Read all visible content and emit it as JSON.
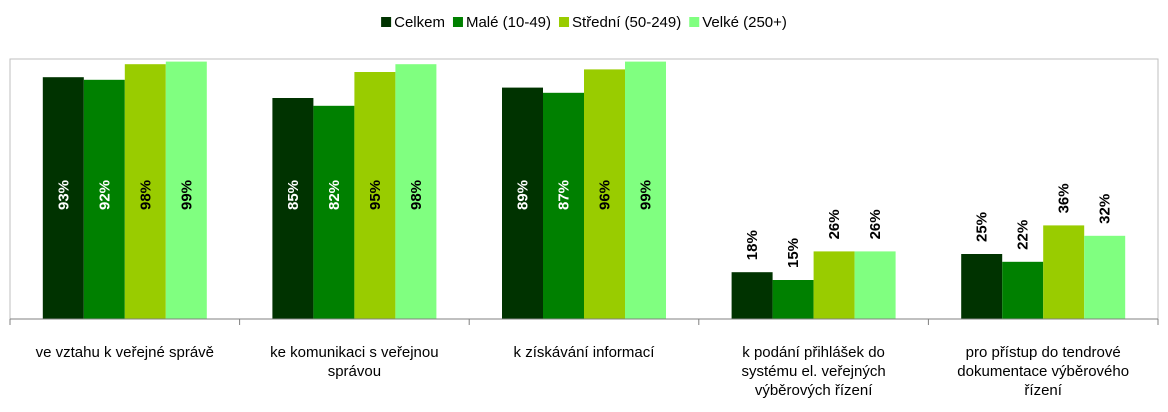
{
  "chart_data": {
    "type": "bar",
    "categories": [
      "ve vztahu k veřejné správě",
      "ke komunikaci s veřejnou správou",
      "k získávání informací",
      "k podání přihlášek do systému el. veřejných výběrových řízení",
      "pro přístup do tendrové dokumentace výběrového řízení"
    ],
    "series": [
      {
        "name": "Celkem",
        "color": "#003300",
        "label_color": "#ffffff",
        "values": [
          93,
          85,
          89,
          18,
          25
        ],
        "value_labels": [
          "93%",
          "85%",
          "89%",
          "18%",
          "25%"
        ]
      },
      {
        "name": "Malé (10-49)",
        "color": "#008000",
        "label_color": "#ffffff",
        "values": [
          92,
          82,
          87,
          15,
          22
        ],
        "value_labels": [
          "92%",
          "82%",
          "87%",
          "15%",
          "22%"
        ]
      },
      {
        "name": "Střední (50-249)",
        "color": "#99cc00",
        "label_color": "#000000",
        "values": [
          98,
          95,
          96,
          26,
          36
        ],
        "value_labels": [
          "98%",
          "95%",
          "96%",
          "26%",
          "36%"
        ]
      },
      {
        "name": "Velké (250+)",
        "color": "#80ff80",
        "label_color": "#000000",
        "values": [
          99,
          98,
          99,
          26,
          32
        ],
        "value_labels": [
          "99%",
          "98%",
          "99%",
          "26%",
          "32%"
        ]
      }
    ],
    "ylim": [
      0,
      100
    ],
    "legend": "top"
  }
}
